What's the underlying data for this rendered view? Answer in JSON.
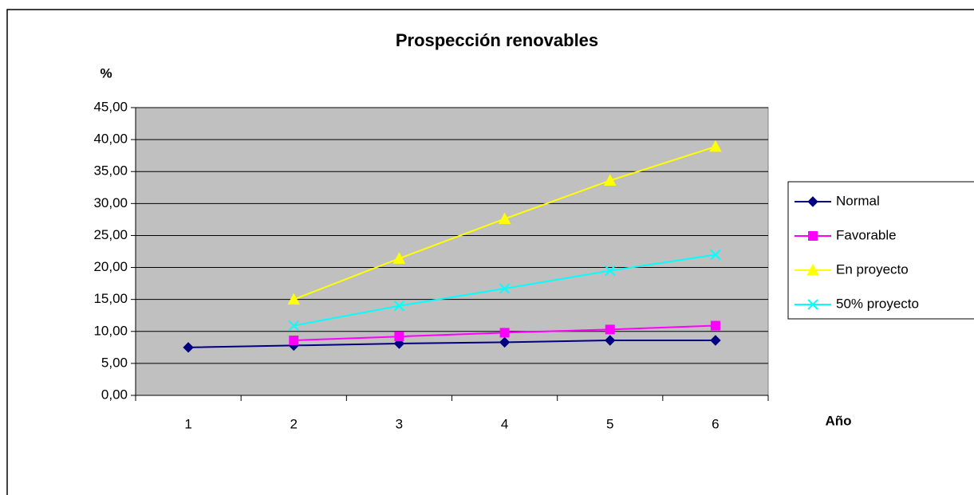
{
  "chart_data": {
    "type": "line",
    "title": "Prospección renovables",
    "y_label": "%",
    "x_label": "Año",
    "categories": [
      "1",
      "2",
      "3",
      "4",
      "5",
      "6"
    ],
    "series": [
      {
        "name": "Normal",
        "color": "#000080",
        "marker": "diamond",
        "values": [
          7.5,
          7.8,
          8.1,
          8.3,
          8.6,
          8.6
        ]
      },
      {
        "name": "Favorable",
        "color": "#ff00ff",
        "marker": "square",
        "values": [
          null,
          8.6,
          9.2,
          9.8,
          10.3,
          10.9
        ]
      },
      {
        "name": "En proyecto",
        "color": "#ffff00",
        "marker": "triangle",
        "values": [
          null,
          15.0,
          21.4,
          27.6,
          33.6,
          38.9
        ]
      },
      {
        "name": "50% proyecto",
        "color": "#00ffff",
        "marker": "x",
        "values": [
          null,
          10.9,
          14.0,
          16.7,
          19.5,
          22.0
        ]
      }
    ],
    "ylim": [
      0,
      45
    ],
    "yticks": [
      {
        "value": 0,
        "label": "0,00"
      },
      {
        "value": 5,
        "label": "5,00"
      },
      {
        "value": 10,
        "label": "10,00"
      },
      {
        "value": 15,
        "label": "15,00"
      },
      {
        "value": 20,
        "label": "20,00"
      },
      {
        "value": 25,
        "label": "25,00"
      },
      {
        "value": 30,
        "label": "30,00"
      },
      {
        "value": 35,
        "label": "35,00"
      },
      {
        "value": 40,
        "label": "40,00"
      },
      {
        "value": 45,
        "label": "45,00"
      }
    ],
    "grid": true,
    "plot_background": "#c0c0c0",
    "legend": "right"
  }
}
